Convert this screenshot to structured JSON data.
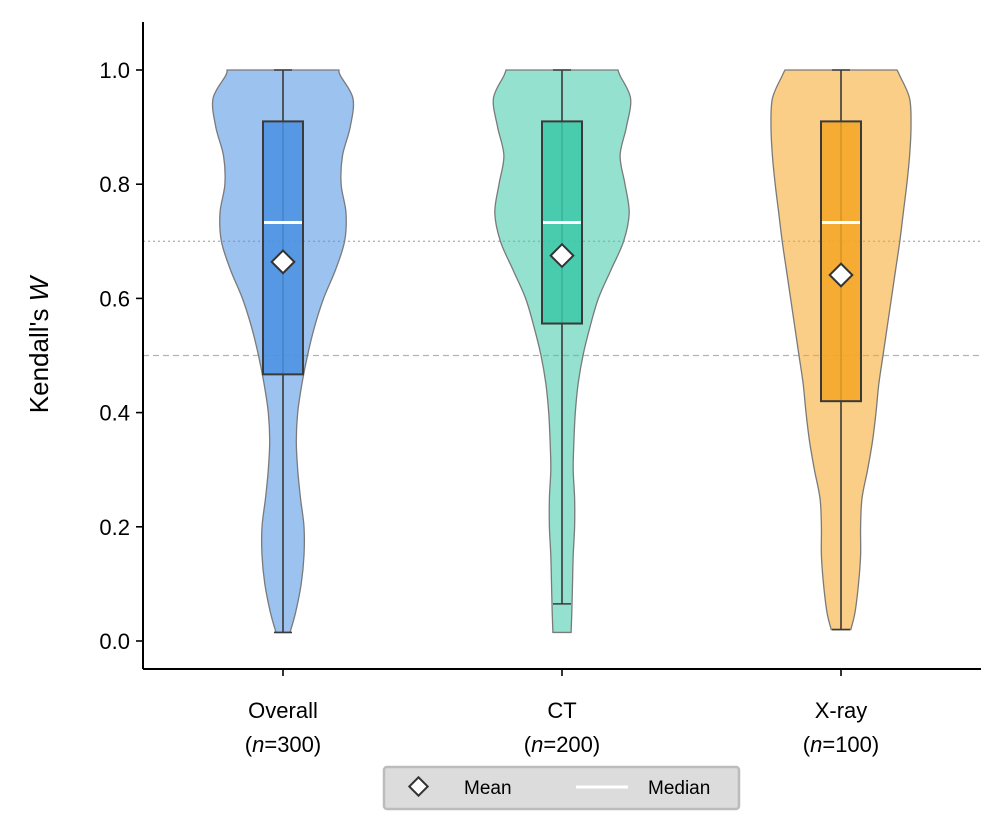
{
  "chart_data": {
    "type": "violin",
    "ylabel": "Kendall's W",
    "ylabel_prefix": "Kendall's ",
    "ylabel_var": "W",
    "ylim": [
      -0.05,
      1.08
    ],
    "yticks": [
      "0.0",
      "0.2",
      "0.4",
      "0.6",
      "0.8",
      "1.0"
    ],
    "reference_lines": [
      {
        "value": 0.7,
        "style": "dotted"
      },
      {
        "value": 0.5,
        "style": "dashed"
      }
    ],
    "categories": [
      {
        "name": "Overall",
        "n_label": "(n=300)",
        "n_pre": "(",
        "n_var": "n",
        "n_post": "=300)"
      },
      {
        "name": "CT",
        "n_label": "(n=200)",
        "n_pre": "(",
        "n_var": "n",
        "n_post": "=200)"
      },
      {
        "name": "X-ray",
        "n_label": "(n=100)",
        "n_pre": "(",
        "n_var": "n",
        "n_post": "=100)"
      }
    ],
    "series": [
      {
        "category": "Overall",
        "color": "#4a90e2",
        "min": 0.015,
        "q1": 0.467,
        "median": 0.733,
        "q3": 0.91,
        "max": 1.0,
        "mean": 0.664,
        "density": [
          [
            0.015,
            0.1
          ],
          [
            0.05,
            0.18
          ],
          [
            0.1,
            0.26
          ],
          [
            0.15,
            0.3
          ],
          [
            0.2,
            0.3
          ],
          [
            0.25,
            0.25
          ],
          [
            0.3,
            0.21
          ],
          [
            0.35,
            0.19
          ],
          [
            0.4,
            0.21
          ],
          [
            0.45,
            0.27
          ],
          [
            0.5,
            0.35
          ],
          [
            0.55,
            0.45
          ],
          [
            0.6,
            0.58
          ],
          [
            0.65,
            0.75
          ],
          [
            0.7,
            0.88
          ],
          [
            0.75,
            0.9
          ],
          [
            0.8,
            0.83
          ],
          [
            0.85,
            0.85
          ],
          [
            0.9,
            0.96
          ],
          [
            0.95,
            1.0
          ],
          [
            0.99,
            0.82
          ],
          [
            1.0,
            0.8
          ]
        ]
      },
      {
        "category": "CT",
        "color": "#3cc8a8",
        "min": 0.065,
        "q1": 0.556,
        "median": 0.733,
        "q3": 0.91,
        "max": 1.0,
        "mean": 0.675,
        "density": [
          [
            0.015,
            0.13
          ],
          [
            0.05,
            0.14
          ],
          [
            0.1,
            0.15
          ],
          [
            0.15,
            0.16
          ],
          [
            0.2,
            0.18
          ],
          [
            0.25,
            0.18
          ],
          [
            0.3,
            0.16
          ],
          [
            0.35,
            0.17
          ],
          [
            0.4,
            0.19
          ],
          [
            0.45,
            0.23
          ],
          [
            0.5,
            0.3
          ],
          [
            0.55,
            0.4
          ],
          [
            0.6,
            0.52
          ],
          [
            0.65,
            0.7
          ],
          [
            0.7,
            0.88
          ],
          [
            0.75,
            0.96
          ],
          [
            0.8,
            0.9
          ],
          [
            0.85,
            0.83
          ],
          [
            0.9,
            0.92
          ],
          [
            0.95,
            0.98
          ],
          [
            0.99,
            0.83
          ],
          [
            1.0,
            0.8
          ]
        ]
      },
      {
        "category": "X-ray",
        "color": "#f5a623",
        "min": 0.02,
        "q1": 0.42,
        "median": 0.733,
        "q3": 0.91,
        "max": 1.0,
        "mean": 0.641,
        "density": [
          [
            0.02,
            0.14
          ],
          [
            0.05,
            0.2
          ],
          [
            0.1,
            0.25
          ],
          [
            0.15,
            0.28
          ],
          [
            0.2,
            0.28
          ],
          [
            0.25,
            0.3
          ],
          [
            0.3,
            0.38
          ],
          [
            0.35,
            0.45
          ],
          [
            0.4,
            0.5
          ],
          [
            0.45,
            0.54
          ],
          [
            0.5,
            0.6
          ],
          [
            0.55,
            0.66
          ],
          [
            0.6,
            0.72
          ],
          [
            0.65,
            0.78
          ],
          [
            0.7,
            0.84
          ],
          [
            0.75,
            0.89
          ],
          [
            0.8,
            0.94
          ],
          [
            0.85,
            0.98
          ],
          [
            0.9,
            1.0
          ],
          [
            0.95,
            0.98
          ],
          [
            0.99,
            0.84
          ],
          [
            1.0,
            0.8
          ]
        ]
      }
    ],
    "legend": {
      "placement": "bottom-center",
      "entries": [
        {
          "label": "Mean",
          "marker": "diamond-icon"
        },
        {
          "label": "Median",
          "marker": "line-icon"
        }
      ]
    }
  }
}
